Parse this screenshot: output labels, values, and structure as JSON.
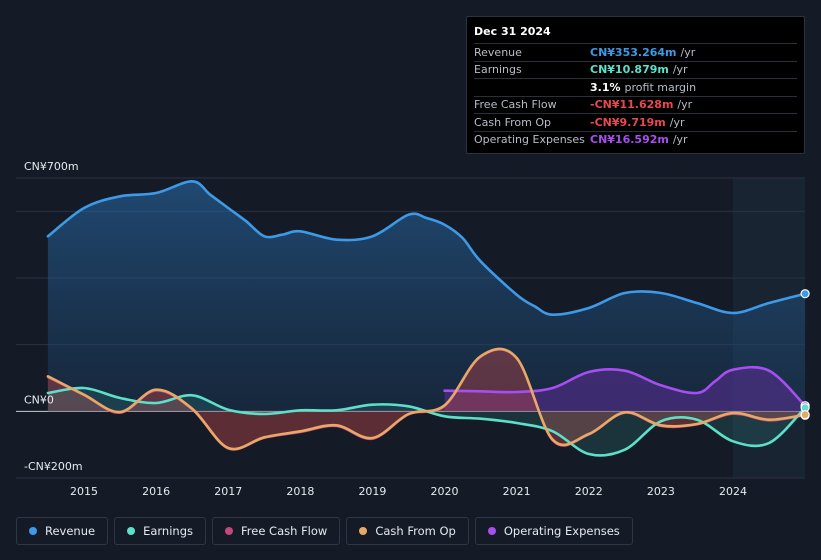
{
  "tooltip": {
    "date": "Dec 31 2024",
    "rows": [
      {
        "label": "Revenue",
        "value": "CN¥353.264m",
        "suffix": "/yr",
        "color": "#3d9ae8"
      },
      {
        "label": "Earnings",
        "value": "CN¥10.879m",
        "suffix": "/yr",
        "color": "#5ce0c9"
      },
      {
        "label": "",
        "value": "3.1%",
        "suffix": "profit margin",
        "color": "#ffffff"
      },
      {
        "label": "Free Cash Flow",
        "value": "-CN¥11.628m",
        "suffix": "/yr",
        "color": "#e8484f"
      },
      {
        "label": "Cash From Op",
        "value": "-CN¥9.719m",
        "suffix": "/yr",
        "color": "#e8484f"
      },
      {
        "label": "Operating Expenses",
        "value": "CN¥16.592m",
        "suffix": "/yr",
        "color": "#a74ef0"
      }
    ]
  },
  "legend": [
    {
      "label": "Revenue",
      "color": "#3d9ae8"
    },
    {
      "label": "Earnings",
      "color": "#5ce0c9"
    },
    {
      "label": "Free Cash Flow",
      "color": "#c2477a"
    },
    {
      "label": "Cash From Op",
      "color": "#e8a866"
    },
    {
      "label": "Operating Expenses",
      "color": "#a74ef0"
    }
  ],
  "chart_data": {
    "type": "area",
    "xlabel": "",
    "ylabel": "",
    "y_tick_labels": [
      "CN¥700m",
      "CN¥0",
      "-CN¥200m"
    ],
    "y_ticks": [
      700,
      0,
      -200
    ],
    "ylim": [
      -200,
      700
    ],
    "xlim": [
      2014.5,
      2025.0
    ],
    "x_ticks": [
      2015,
      2016,
      2017,
      2018,
      2019,
      2020,
      2021,
      2022,
      2023,
      2024
    ],
    "x_tick_labels": [
      "2015",
      "2016",
      "2017",
      "2018",
      "2019",
      "2020",
      "2021",
      "2022",
      "2023",
      "2024"
    ],
    "forecast_start": 2024.0,
    "series": [
      {
        "name": "Revenue",
        "color": "#3d9ae8",
        "x": [
          2014.5,
          2015.0,
          2015.5,
          2016.0,
          2016.5,
          2016.75,
          2017.0,
          2017.25,
          2017.5,
          2017.75,
          2018.0,
          2018.5,
          2019.0,
          2019.5,
          2019.75,
          2020.0,
          2020.25,
          2020.5,
          2021.0,
          2021.25,
          2021.5,
          2022.0,
          2022.5,
          2023.0,
          2023.5,
          2024.0,
          2024.5,
          2025.0
        ],
        "y": [
          525,
          610,
          645,
          655,
          690,
          650,
          610,
          570,
          525,
          530,
          540,
          515,
          525,
          590,
          580,
          560,
          520,
          450,
          350,
          315,
          290,
          310,
          355,
          355,
          325,
          295,
          325,
          353
        ]
      },
      {
        "name": "Earnings",
        "color": "#5ce0c9",
        "x": [
          2014.5,
          2015.0,
          2015.5,
          2016.0,
          2016.5,
          2017.0,
          2017.5,
          2018.0,
          2018.5,
          2019.0,
          2019.5,
          2020.0,
          2020.5,
          2021.0,
          2021.5,
          2022.0,
          2022.5,
          2023.0,
          2023.5,
          2024.0,
          2024.5,
          2025.0
        ],
        "y": [
          55,
          70,
          40,
          25,
          48,
          5,
          -8,
          3,
          3,
          20,
          15,
          -15,
          -22,
          -35,
          -60,
          -128,
          -115,
          -30,
          -25,
          -90,
          -95,
          11
        ]
      },
      {
        "name": "Free Cash Flow",
        "color": "#c2477a",
        "x": [
          2014.5,
          2015.0,
          2015.5,
          2016.0,
          2016.5,
          2017.0,
          2017.5,
          2018.0,
          2018.5,
          2019.0,
          2019.5,
          2020.0,
          2020.5,
          2021.0,
          2021.5,
          2022.0,
          2022.5,
          2023.0,
          2023.5,
          2024.0,
          2024.5,
          2025.0
        ],
        "y": [
          102,
          48,
          -5,
          62,
          5,
          -112,
          -80,
          -63,
          -45,
          -83,
          -10,
          15,
          163,
          158,
          -88,
          -70,
          -5,
          -45,
          -40,
          -8,
          -28,
          -12
        ]
      },
      {
        "name": "Cash From Op",
        "color": "#e8a866",
        "x": [
          2014.5,
          2015.0,
          2015.5,
          2016.0,
          2016.5,
          2017.0,
          2017.5,
          2018.0,
          2018.5,
          2019.0,
          2019.5,
          2020.0,
          2020.5,
          2021.0,
          2021.5,
          2022.0,
          2022.5,
          2023.0,
          2023.5,
          2024.0,
          2024.5,
          2025.0
        ],
        "y": [
          105,
          50,
          -2,
          65,
          8,
          -110,
          -78,
          -60,
          -42,
          -80,
          -8,
          18,
          165,
          160,
          -85,
          -68,
          -3,
          -42,
          -38,
          -5,
          -25,
          -10
        ]
      },
      {
        "name": "Operating Expenses",
        "color": "#a74ef0",
        "x": [
          2020.0,
          2020.5,
          2021.0,
          2021.5,
          2022.0,
          2022.5,
          2023.0,
          2023.5,
          2023.75,
          2024.0,
          2024.5,
          2025.0
        ],
        "y": [
          62,
          60,
          58,
          70,
          118,
          122,
          78,
          55,
          90,
          125,
          122,
          17
        ]
      }
    ]
  }
}
